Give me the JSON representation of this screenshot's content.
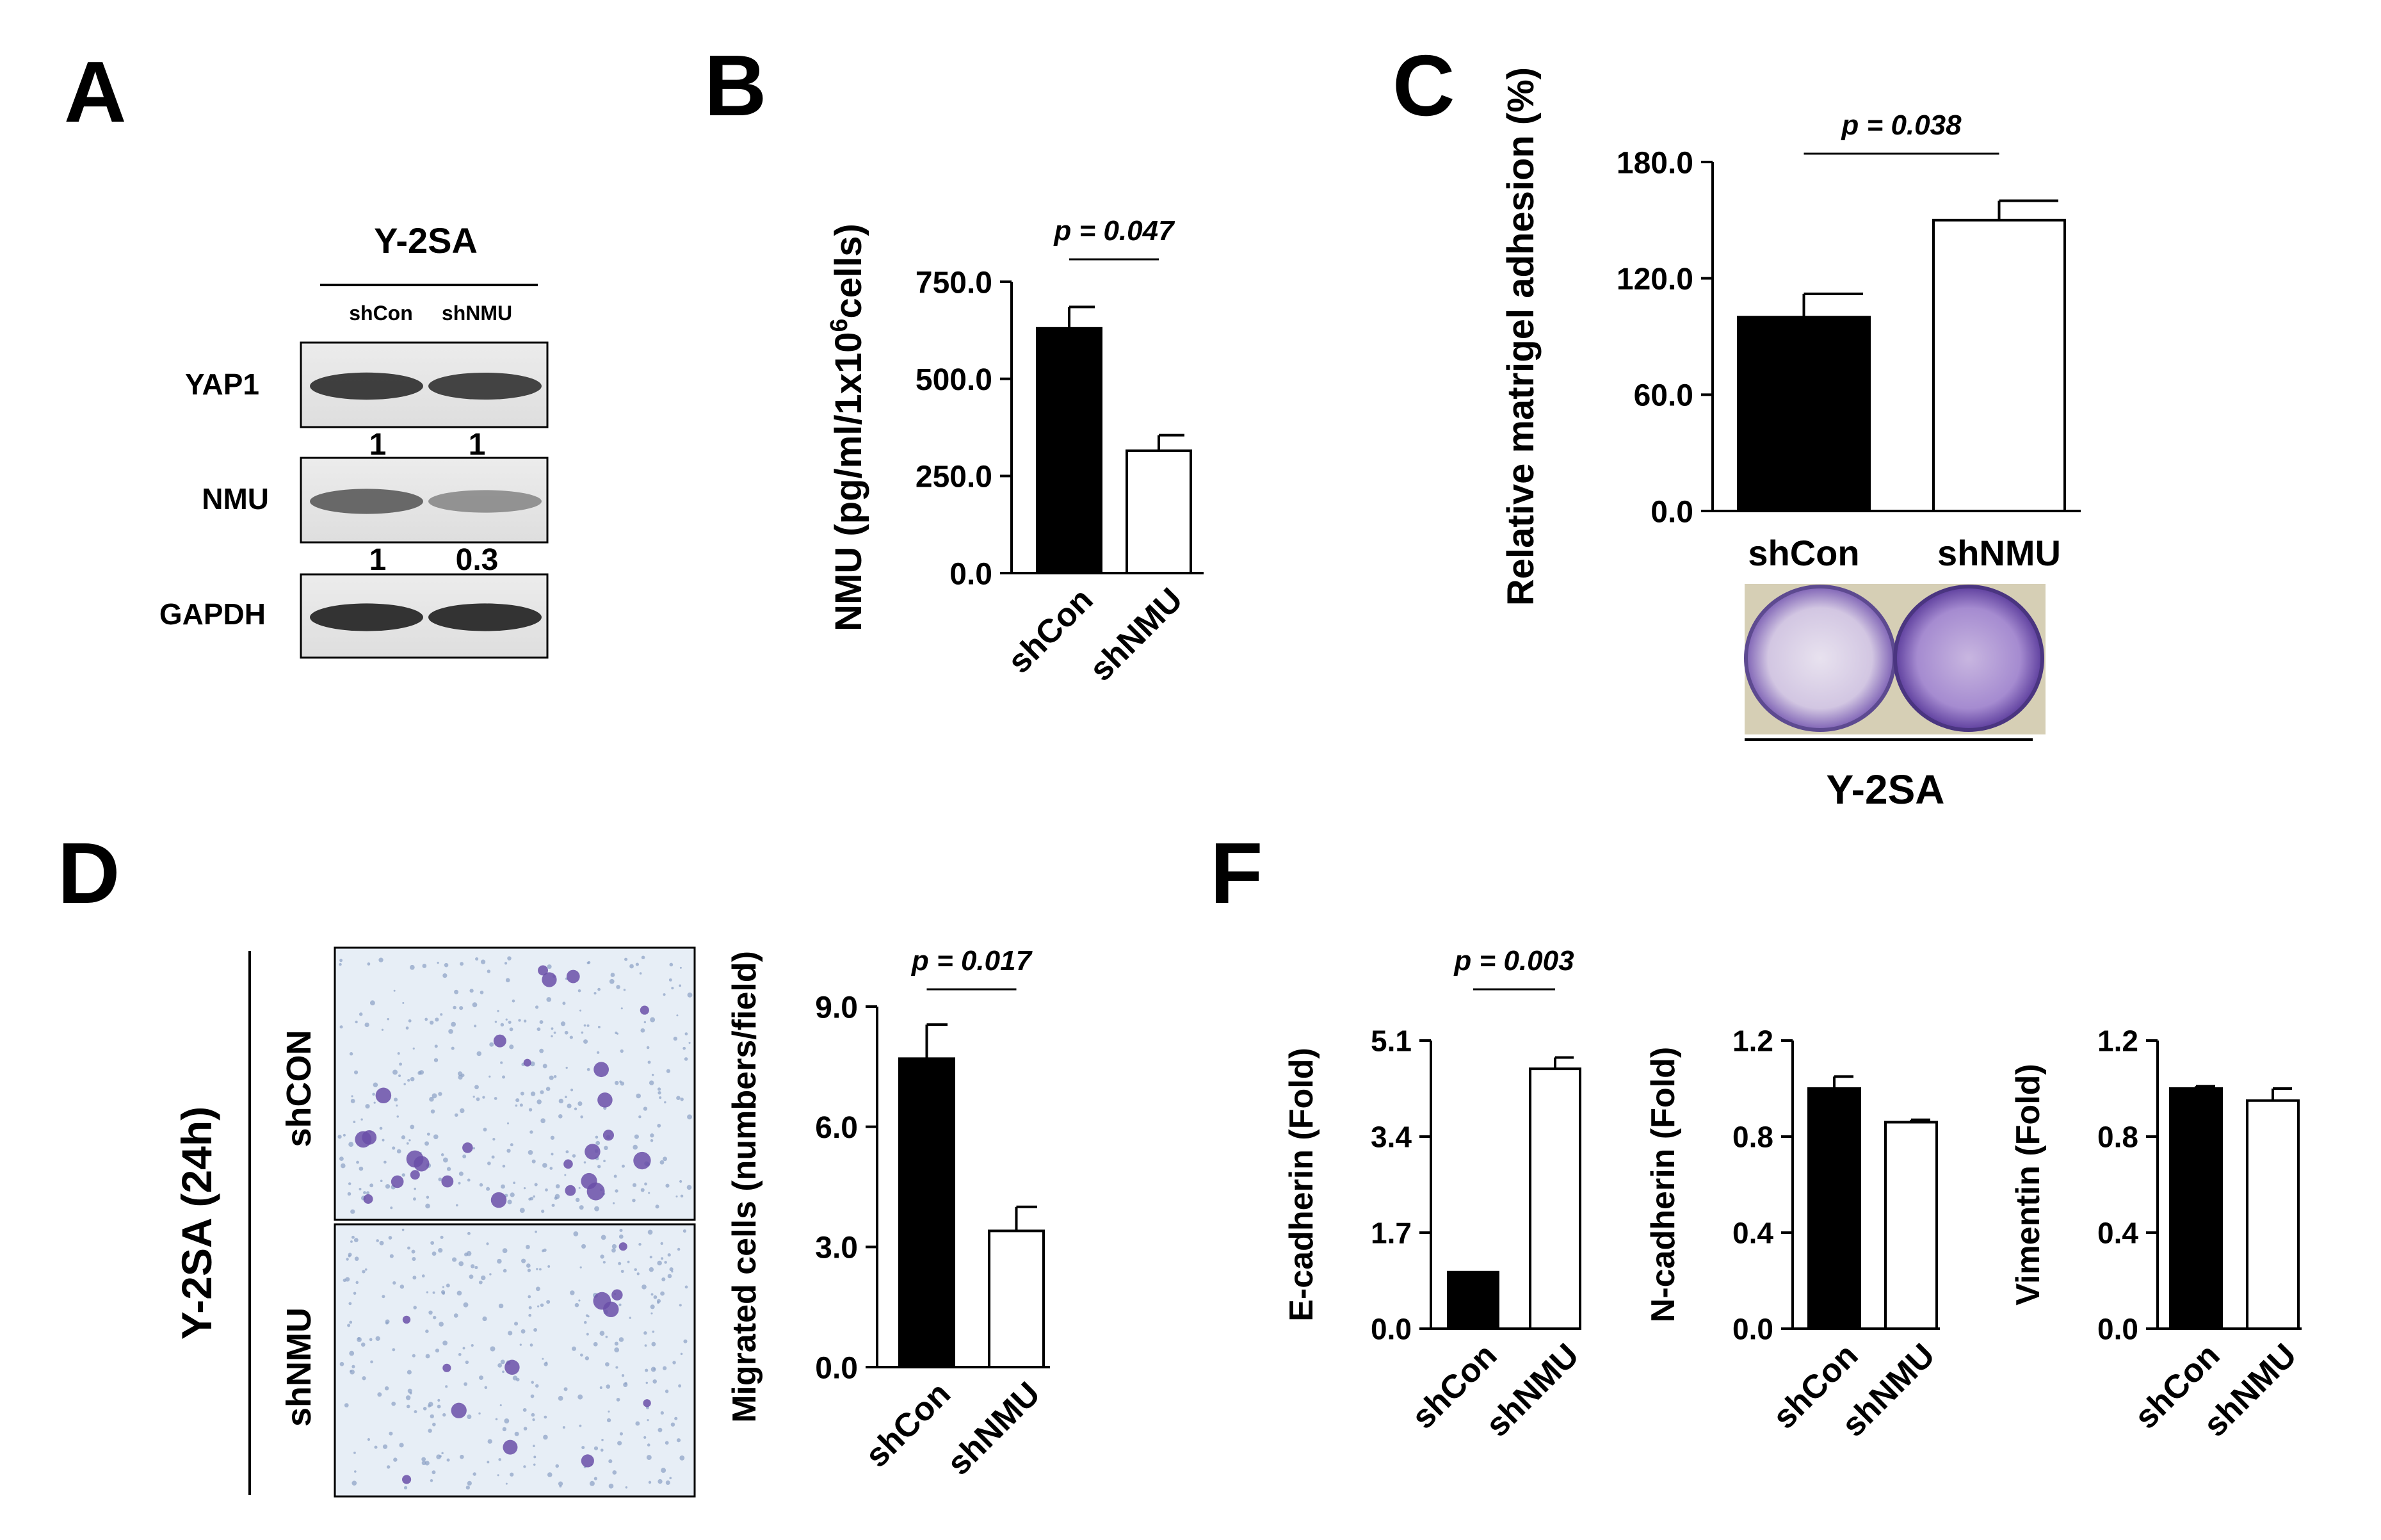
{
  "panel_letters": [
    "A",
    "B",
    "C",
    "D",
    "F"
  ],
  "panel_a": {
    "cell_line": "Y-2SA",
    "lanes": [
      "shCon",
      "shNMU"
    ],
    "rows": [
      {
        "label": "YAP1",
        "quant": [
          "1",
          "1"
        ],
        "intensity": [
          0.9,
          0.88
        ]
      },
      {
        "label": "NMU",
        "quant": [
          "1",
          "0.3"
        ],
        "intensity": [
          0.7,
          0.45
        ]
      },
      {
        "label": "GAPDH",
        "quant": [],
        "intensity": [
          0.95,
          0.95
        ]
      }
    ]
  },
  "panel_c": {
    "image_caption": "Y-2SA"
  },
  "panel_d": {
    "side_label": "Y-2SA (24h)",
    "image_labels": [
      "shCON",
      "shNMU"
    ]
  },
  "colors": {
    "control_bar": "#000000",
    "knockdown_bar": "#ffffff",
    "stain": "#6a4fa8"
  },
  "chart_data": [
    {
      "id": "B",
      "type": "bar",
      "categories": [
        "shCon",
        "shNMU"
      ],
      "values": [
        630,
        315
      ],
      "errors": [
        55,
        40
      ],
      "ylabel": "NMU (pg/ml/1x10",
      "ylabel_sup": "6",
      "ylabel_end": "cells)",
      "ylim": [
        0,
        750
      ],
      "yticks": [
        "0.0",
        "250.0",
        "500.0",
        "750.0"
      ],
      "annotation": "p = 0.047"
    },
    {
      "id": "C",
      "type": "bar",
      "categories": [
        "shCon",
        "shNMU"
      ],
      "values": [
        100,
        150
      ],
      "errors": [
        12,
        10
      ],
      "ylabel": "Relative matrigel adhesion (%)",
      "ylim": [
        0,
        180
      ],
      "yticks": [
        "0.0",
        "60.0",
        "120.0",
        "180.0"
      ],
      "annotation": "p = 0.038"
    },
    {
      "id": "D",
      "type": "bar",
      "categories": [
        "shCon",
        "shNMU"
      ],
      "values": [
        7.7,
        3.4
      ],
      "errors": [
        0.85,
        0.6
      ],
      "ylabel": "Migrated cells (numbers/field)",
      "ylim": [
        0,
        9
      ],
      "yticks": [
        "0.0",
        "3.0",
        "6.0",
        "9.0"
      ],
      "annotation": "p = 0.017"
    },
    {
      "id": "F1",
      "type": "bar",
      "categories": [
        "shCon",
        "shNMU"
      ],
      "values": [
        1.0,
        4.6
      ],
      "errors": [
        0.0,
        0.2
      ],
      "ylabel": "E-cadherin (Fold)",
      "ylim": [
        0,
        5.1
      ],
      "yticks": [
        "0.0",
        "1.7",
        "3.4",
        "5.1"
      ],
      "annotation": "p = 0.003"
    },
    {
      "id": "F2",
      "type": "bar",
      "categories": [
        "shCon",
        "shNMU"
      ],
      "values": [
        1.0,
        0.86
      ],
      "errors": [
        0.05,
        0.01
      ],
      "ylabel": "N-cadherin (Fold)",
      "ylim": [
        0,
        1.2
      ],
      "yticks": [
        "0.0",
        "0.4",
        "0.8",
        "1.2"
      ],
      "annotation": ""
    },
    {
      "id": "F3",
      "type": "bar",
      "categories": [
        "shCon",
        "shNMU"
      ],
      "values": [
        1.0,
        0.95
      ],
      "errors": [
        0.01,
        0.05
      ],
      "ylabel": "Vimentin (Fold)",
      "ylim": [
        0,
        1.2
      ],
      "yticks": [
        "0.0",
        "0.4",
        "0.8",
        "1.2"
      ],
      "annotation": ""
    }
  ]
}
